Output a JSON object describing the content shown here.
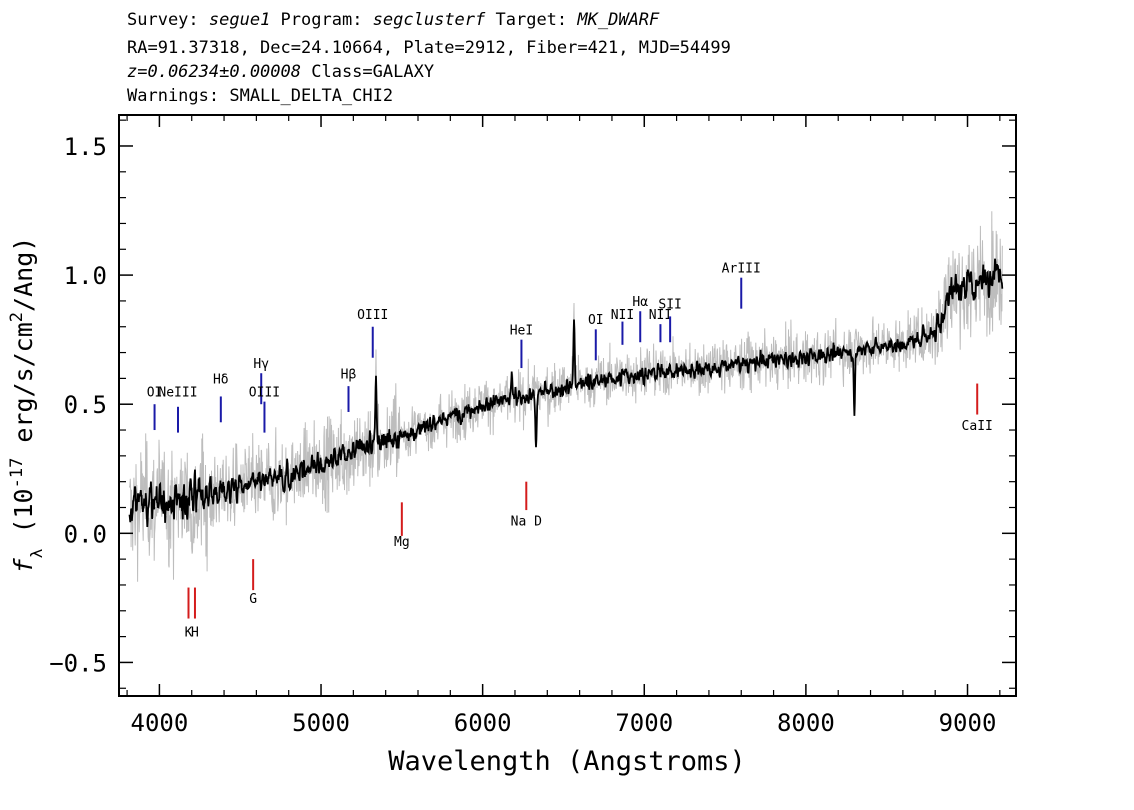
{
  "header": {
    "line1": {
      "survey_label": "Survey: ",
      "survey": "segue1",
      "program_label": " Program: ",
      "program": "segclusterf",
      "target_label": " Target: ",
      "target": "MK_DWARF"
    },
    "line2": "RA=91.37318, Dec=24.10664, Plate=2912, Fiber=421, MJD=54499",
    "line3": {
      "redshift": "z=0.06234±0.00008",
      "class": " Class=GALAXY"
    },
    "line4": "Warnings: SMALL_DELTA_CHI2"
  },
  "chart_data": {
    "type": "line",
    "xlabel": "Wavelength (Angstroms)",
    "ylabel": "f_λ (10^-17 erg/s/cm^2/Ang)",
    "xlim": [
      3750,
      9300
    ],
    "ylim": [
      -0.63,
      1.62
    ],
    "xticks": [
      4000,
      5000,
      6000,
      7000,
      8000,
      9000
    ],
    "yticks": [
      -0.5,
      0.0,
      0.5,
      1.0,
      1.5
    ],
    "ytick_labels": [
      "−0.5",
      "0.0",
      "0.5",
      "1.0",
      "1.5"
    ],
    "grid": false,
    "colors": {
      "flux": "#000000",
      "raw": "#bdbdbd",
      "emission": "#1a1aa8",
      "absorption": "#d41c1c"
    },
    "continuum": {
      "x": [
        3810,
        3850,
        4000,
        4200,
        4500,
        4800,
        5000,
        5200,
        5400,
        5600,
        5800,
        6000,
        6200,
        6400,
        6600,
        6800,
        7000,
        7200,
        7400,
        7600,
        7800,
        8000,
        8200,
        8400,
        8600,
        8800,
        8900,
        9000,
        9100,
        9200,
        9220
      ],
      "y": [
        0.05,
        0.12,
        0.12,
        0.13,
        0.18,
        0.22,
        0.27,
        0.32,
        0.36,
        0.4,
        0.45,
        0.5,
        0.52,
        0.55,
        0.58,
        0.6,
        0.62,
        0.63,
        0.64,
        0.66,
        0.67,
        0.68,
        0.7,
        0.72,
        0.73,
        0.78,
        0.95,
        0.95,
        0.98,
        1.02,
        1.0
      ]
    },
    "emission_lines": [
      {
        "label": "OI",
        "x": 3970,
        "y0": 0.4,
        "y1": 0.5,
        "label_y": 0.53
      },
      {
        "label": "NeIII",
        "x": 4115,
        "y0": 0.39,
        "y1": 0.49,
        "label_y": 0.53
      },
      {
        "label": "Hδ",
        "x": 4380,
        "y0": 0.43,
        "y1": 0.53,
        "label_y": 0.58
      },
      {
        "label": "Hγ",
        "x": 4630,
        "y0": 0.5,
        "y1": 0.62,
        "label_y": 0.64
      },
      {
        "label": "OIII",
        "x": 4650,
        "y0": 0.39,
        "y1": 0.51,
        "label_y": 0.53
      },
      {
        "label": "Hβ",
        "x": 5170,
        "y0": 0.47,
        "y1": 0.57,
        "label_y": 0.6
      },
      {
        "label": "OIII",
        "x": 5320,
        "y0": 0.68,
        "y1": 0.8,
        "label_y": 0.83
      },
      {
        "label": "HeI",
        "x": 6240,
        "y0": 0.64,
        "y1": 0.75,
        "label_y": 0.77
      },
      {
        "label": "OI",
        "x": 6700,
        "y0": 0.67,
        "y1": 0.79,
        "label_y": 0.81
      },
      {
        "label": "NII",
        "x": 6865,
        "y0": 0.73,
        "y1": 0.82,
        "label_y": 0.83
      },
      {
        "label": "Hα",
        "x": 6975,
        "y0": 0.74,
        "y1": 0.86,
        "label_y": 0.88
      },
      {
        "label": "NII",
        "x": 7100,
        "y0": 0.74,
        "y1": 0.81,
        "label_y": 0.83
      },
      {
        "label": "SII",
        "x": 7160,
        "y0": 0.74,
        "y1": 0.84,
        "label_y": 0.87
      },
      {
        "label": "ArIII",
        "x": 7600,
        "y0": 0.87,
        "y1": 0.99,
        "label_y": 1.01
      }
    ],
    "absorption_lines": [
      {
        "label": "K",
        "x": 4180,
        "y0": -0.33,
        "y1": -0.21,
        "label_y": -0.4
      },
      {
        "label": "H",
        "x": 4220,
        "y0": -0.33,
        "y1": -0.21,
        "label_y": -0.4
      },
      {
        "label": "G",
        "x": 4580,
        "y0": -0.22,
        "y1": -0.1,
        "label_y": -0.27
      },
      {
        "label": "Mg",
        "x": 5500,
        "y0": -0.01,
        "y1": 0.12,
        "label_y": -0.05
      },
      {
        "label": "Na D",
        "x": 6270,
        "y0": 0.09,
        "y1": 0.2,
        "label_y": 0.03
      },
      {
        "label": "CaII",
        "x": 9060,
        "y0": 0.46,
        "y1": 0.58,
        "label_y": 0.4
      }
    ]
  }
}
